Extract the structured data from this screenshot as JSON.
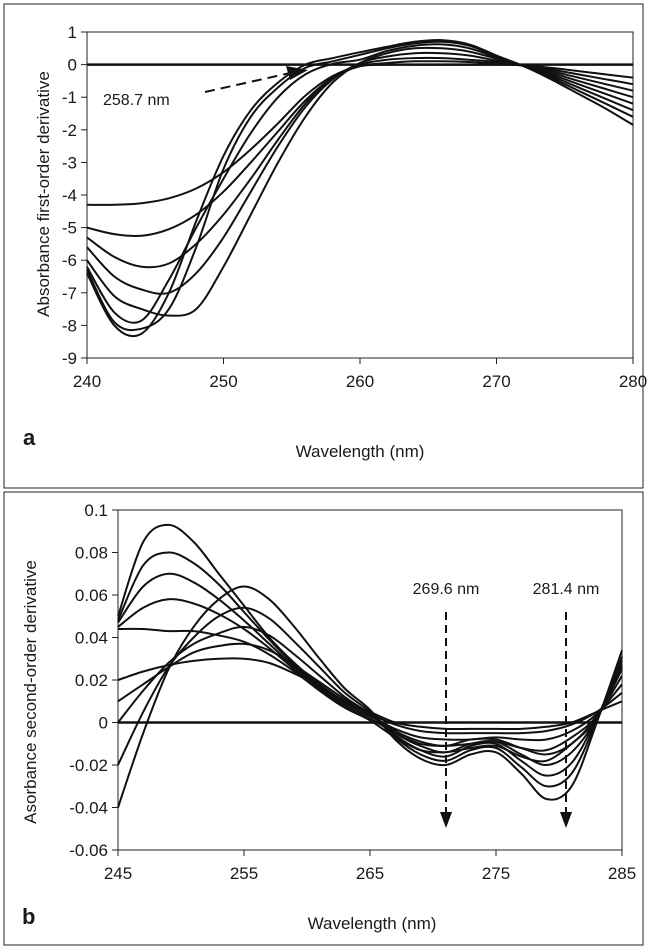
{
  "chart_data": [
    {
      "panel": "a",
      "type": "line",
      "xlabel": "Wavelength (nm)",
      "ylabel": "Absorbance first-order derivative",
      "xlim": [
        240,
        280
      ],
      "ylim": [
        -9,
        1
      ],
      "xticks": [
        240,
        250,
        260,
        270,
        280
      ],
      "yticks": [
        1,
        0,
        -1,
        -2,
        -3,
        -4,
        -5,
        -6,
        -7,
        -8,
        -9
      ],
      "grid": false,
      "x": [
        240,
        242,
        244,
        246,
        248,
        250,
        252,
        254,
        256,
        258,
        260,
        262,
        264,
        266,
        268,
        270,
        272,
        274,
        276,
        278,
        280
      ],
      "series": [
        {
          "values": [
            -4.3,
            -4.3,
            -4.25,
            -4.1,
            -3.8,
            -3.3,
            -2.6,
            -1.8,
            -0.95,
            -0.35,
            -0.05,
            0.0,
            0.0,
            0.0,
            0.0,
            0.0,
            -0.02,
            -0.1,
            -0.2,
            -0.3,
            -0.4
          ]
        },
        {
          "values": [
            -5.0,
            -5.2,
            -5.25,
            -5.05,
            -4.6,
            -3.9,
            -3.0,
            -2.05,
            -1.1,
            -0.4,
            -0.05,
            0.05,
            0.1,
            0.1,
            0.08,
            0.03,
            -0.03,
            -0.15,
            -0.3,
            -0.45,
            -0.6
          ]
        },
        {
          "values": [
            -5.3,
            -5.9,
            -6.2,
            -6.1,
            -5.5,
            -4.6,
            -3.5,
            -2.3,
            -1.2,
            -0.4,
            0.0,
            0.15,
            0.2,
            0.2,
            0.15,
            0.08,
            -0.03,
            -0.2,
            -0.4,
            -0.6,
            -0.8
          ]
        },
        {
          "values": [
            -5.6,
            -6.5,
            -6.9,
            -7.0,
            -6.4,
            -5.3,
            -3.9,
            -2.5,
            -1.3,
            -0.45,
            0.05,
            0.25,
            0.35,
            0.35,
            0.28,
            0.12,
            -0.03,
            -0.25,
            -0.5,
            -0.75,
            -1.0
          ]
        },
        {
          "values": [
            -6.0,
            -7.1,
            -7.5,
            -7.7,
            -7.5,
            -6.2,
            -4.6,
            -3.0,
            -1.6,
            -0.55,
            0.05,
            0.35,
            0.5,
            0.5,
            0.4,
            0.18,
            -0.04,
            -0.3,
            -0.6,
            -0.9,
            -1.2
          ]
        },
        {
          "values": [
            -6.2,
            -7.6,
            -7.85,
            -6.6,
            -5.0,
            -3.5,
            -2.1,
            -1.0,
            -0.3,
            0.02,
            0.15,
            0.42,
            0.58,
            0.62,
            0.5,
            0.22,
            -0.05,
            -0.35,
            -0.7,
            -1.05,
            -1.4
          ]
        },
        {
          "values": [
            -6.3,
            -7.9,
            -8.1,
            -7.5,
            -5.6,
            -3.2,
            -1.6,
            -0.7,
            -0.1,
            0.1,
            0.3,
            0.5,
            0.65,
            0.7,
            0.58,
            0.25,
            -0.05,
            -0.4,
            -0.8,
            -1.2,
            -1.6
          ]
        },
        {
          "values": [
            -6.4,
            -8.0,
            -8.25,
            -7.0,
            -4.8,
            -2.8,
            -1.4,
            -0.55,
            0.0,
            0.2,
            0.38,
            0.55,
            0.7,
            0.75,
            0.62,
            0.28,
            -0.05,
            -0.45,
            -0.9,
            -1.35,
            -1.85
          ]
        }
      ],
      "annotations": [
        {
          "text": "258.7 nm",
          "x": 258.7,
          "y": 0
        }
      ]
    },
    {
      "panel": "b",
      "type": "line",
      "xlabel": "Wavelength (nm)",
      "ylabel": "Asorbance second-order derivative",
      "xlim": [
        245,
        285
      ],
      "ylim": [
        -0.06,
        0.1
      ],
      "xticks": [
        245,
        255,
        265,
        275,
        285
      ],
      "yticks": [
        0.1,
        0.08,
        0.06,
        0.04,
        0.02,
        0,
        -0.02,
        -0.04,
        -0.06
      ],
      "ytick_labels": [
        "0.1",
        "0.08",
        "0.06",
        "0.04",
        "0.02",
        "0",
        "-0.02",
        "-0.04",
        "-0.06"
      ],
      "grid": false,
      "x": [
        245,
        247,
        249,
        251,
        253,
        255,
        257,
        259,
        261,
        263,
        265,
        267,
        269,
        271,
        273,
        275,
        277,
        279,
        281,
        283,
        285
      ],
      "series": [
        {
          "values": [
            0.05,
            0.085,
            0.093,
            0.085,
            0.07,
            0.055,
            0.04,
            0.028,
            0.018,
            0.01,
            0.005,
            0.0,
            -0.002,
            -0.003,
            -0.003,
            -0.003,
            -0.003,
            -0.002,
            0.0,
            0.005,
            0.01
          ]
        },
        {
          "values": [
            0.048,
            0.074,
            0.08,
            0.075,
            0.065,
            0.052,
            0.039,
            0.027,
            0.017,
            0.009,
            0.004,
            -0.001,
            -0.004,
            -0.005,
            -0.005,
            -0.005,
            -0.005,
            -0.004,
            -0.001,
            0.005,
            0.014
          ]
        },
        {
          "values": [
            0.047,
            0.064,
            0.07,
            0.066,
            0.058,
            0.048,
            0.037,
            0.026,
            0.016,
            0.008,
            0.003,
            -0.003,
            -0.007,
            -0.008,
            -0.008,
            -0.007,
            -0.008,
            -0.008,
            -0.004,
            0.004,
            0.018
          ]
        },
        {
          "values": [
            0.045,
            0.054,
            0.058,
            0.056,
            0.051,
            0.044,
            0.035,
            0.025,
            0.015,
            0.007,
            0.002,
            -0.005,
            -0.01,
            -0.011,
            -0.01,
            -0.009,
            -0.012,
            -0.013,
            -0.007,
            0.003,
            0.022
          ]
        },
        {
          "values": [
            0.044,
            0.044,
            0.043,
            0.043,
            0.041,
            0.038,
            0.032,
            0.024,
            0.015,
            0.007,
            0.001,
            -0.007,
            -0.013,
            -0.014,
            -0.012,
            -0.011,
            -0.016,
            -0.018,
            -0.01,
            0.002,
            0.026
          ]
        },
        {
          "values": [
            -0.04,
            -0.005,
            0.025,
            0.045,
            0.058,
            0.064,
            0.058,
            0.045,
            0.03,
            0.016,
            0.006,
            -0.008,
            -0.017,
            -0.02,
            -0.015,
            -0.014,
            -0.024,
            -0.036,
            -0.03,
            0.0,
            0.034
          ]
        },
        {
          "values": [
            -0.02,
            0.005,
            0.026,
            0.04,
            0.05,
            0.054,
            0.049,
            0.038,
            0.026,
            0.014,
            0.005,
            -0.007,
            -0.015,
            -0.018,
            -0.013,
            -0.012,
            -0.021,
            -0.03,
            -0.024,
            0.001,
            0.031
          ]
        },
        {
          "values": [
            0.0,
            0.015,
            0.028,
            0.037,
            0.042,
            0.045,
            0.041,
            0.032,
            0.022,
            0.012,
            0.004,
            -0.006,
            -0.013,
            -0.016,
            -0.011,
            -0.01,
            -0.018,
            -0.025,
            -0.019,
            0.002,
            0.029
          ]
        },
        {
          "values": [
            0.01,
            0.018,
            0.026,
            0.033,
            0.036,
            0.037,
            0.034,
            0.027,
            0.019,
            0.011,
            0.004,
            -0.005,
            -0.011,
            -0.014,
            -0.01,
            -0.009,
            -0.015,
            -0.02,
            -0.014,
            0.002,
            0.027
          ]
        },
        {
          "values": [
            0.02,
            0.024,
            0.027,
            0.029,
            0.03,
            0.03,
            0.028,
            0.023,
            0.017,
            0.01,
            0.004,
            -0.004,
            -0.009,
            -0.011,
            -0.008,
            -0.008,
            -0.012,
            -0.015,
            -0.01,
            0.003,
            0.025
          ]
        }
      ],
      "annotations": [
        {
          "text": "269.6 nm",
          "x": 271,
          "y": 0
        },
        {
          "text": "281.4 nm",
          "x": 280.6,
          "y": 0
        }
      ]
    }
  ],
  "panels": {
    "a": {
      "letter": "a"
    },
    "b": {
      "letter": "b"
    }
  },
  "line_color": "#111111"
}
